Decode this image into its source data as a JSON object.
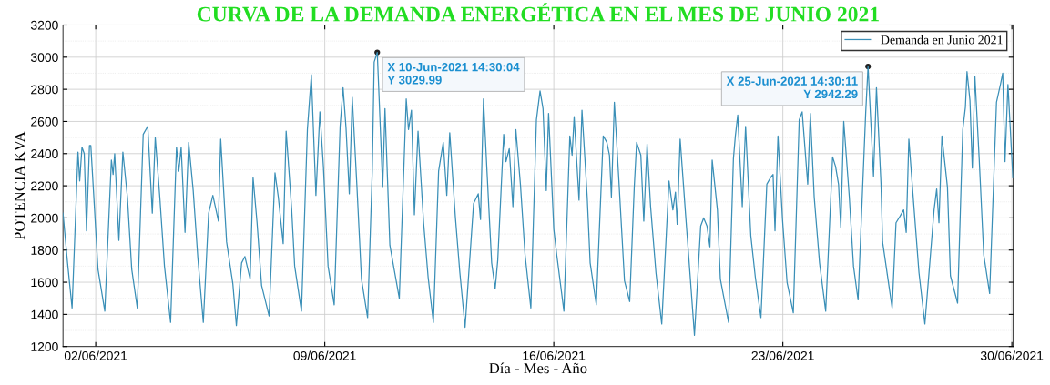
{
  "chart_data": {
    "type": "line",
    "title": "CURVA DE LA DEMANDA ENERGÉTICA EN EL MES DE JUNIO 2021",
    "xlabel": "Día - Mes - Año",
    "ylabel": "POTENCIA KVA",
    "xlim": [
      "2021-06-01",
      "2021-06-30T01:00"
    ],
    "xticks": [
      {
        "value": "2021-06-02",
        "label": "02/06/2021"
      },
      {
        "value": "2021-06-09",
        "label": "09/06/2021"
      },
      {
        "value": "2021-06-16",
        "label": "16/06/2021"
      },
      {
        "value": "2021-06-23",
        "label": "23/06/2021"
      },
      {
        "value": "2021-06-30",
        "label": "30/06/2021"
      }
    ],
    "ylim": [
      1200,
      3200
    ],
    "yticks": [
      1200,
      1400,
      1600,
      1800,
      2000,
      2200,
      2400,
      2600,
      2800,
      3000,
      3200
    ],
    "grid": true,
    "legend": "top right",
    "marker": "none",
    "line_style": "solid",
    "annotations": [
      {
        "text": "X 10-Jun-2021 14:30:04\nY 3029.99",
        "x": "2021-06-10T14:30",
        "y": 3029.99
      },
      {
        "text": "X 25-Jun-2021 14:30:11\nY 2942.29",
        "x": "2021-06-25T14:30",
        "y": 2942.29
      }
    ],
    "series": [
      {
        "name": "Demanda en Junio 2021",
        "color": "#3a8fb7",
        "x": [
          "2021-06-01T00:00",
          "2021-06-01T03:20",
          "2021-06-01T06:40",
          "2021-06-01T11:00",
          "2021-06-01T12:15",
          "2021-06-01T13:55",
          "2021-06-01T15:35",
          "2021-06-01T17:15",
          "2021-06-01T19:25",
          "2021-06-01T20:25",
          "2021-06-01T22:20",
          "2021-06-02T01:40",
          "2021-06-02T06:40",
          "2021-06-02T11:30",
          "2021-06-02T12:45",
          "2021-06-02T13:55",
          "2021-06-02T17:00",
          "2021-06-02T19:55",
          "2021-06-02T23:15",
          "2021-06-03T02:25",
          "2021-06-03T06:30",
          "2021-06-03T10:50",
          "2021-06-03T14:10",
          "2021-06-03T17:30",
          "2021-06-03T19:40",
          "2021-06-03T23:00",
          "2021-06-04T02:25",
          "2021-06-04T06:55",
          "2021-06-04T11:15",
          "2021-06-04T12:55",
          "2021-06-04T14:40",
          "2021-06-04T17:30",
          "2021-06-04T20:10",
          "2021-06-04T23:30",
          "2021-06-05T02:55",
          "2021-06-05T06:55",
          "2021-06-05T10:50",
          "2021-06-05T13:55",
          "2021-06-05T18:00",
          "2021-06-05T19:40",
          "2021-06-06T00:00",
          "2021-06-06T04:35",
          "2021-06-06T07:10",
          "2021-06-06T11:00",
          "2021-06-06T13:25",
          "2021-06-06T17:15",
          "2021-06-06T19:25",
          "2021-06-06T22:20",
          "2021-06-07T01:40",
          "2021-06-07T07:10",
          "2021-06-07T11:30",
          "2021-06-07T13:55",
          "2021-06-07T17:30",
          "2021-06-07T19:40",
          "2021-06-07T23:45",
          "2021-06-08T01:55",
          "2021-06-08T06:55",
          "2021-06-08T11:15",
          "2021-06-08T14:10",
          "2021-06-08T17:30",
          "2021-06-08T20:25",
          "2021-06-08T23:00",
          "2021-06-09T02:25",
          "2021-06-09T06:55",
          "2021-06-09T11:15",
          "2021-06-09T13:25",
          "2021-06-09T15:35",
          "2021-06-09T18:00",
          "2021-06-09T20:10",
          "2021-06-09T23:30",
          "2021-06-10T02:55",
          "2021-06-10T07:25",
          "2021-06-10T10:50",
          "2021-06-10T12:15",
          "2021-06-10T14:30",
          "2021-06-10T18:30",
          "2021-06-10T20:10",
          "2021-06-10T23:45",
          "2021-06-11T06:40",
          "2021-06-11T10:35",
          "2021-06-11T11:45",
          "2021-06-11T13:25",
          "2021-06-11T15:35",
          "2021-06-11T17:45",
          "2021-06-11T20:25",
          "2021-06-12T00:30",
          "2021-06-12T03:50",
          "2021-06-12T07:40",
          "2021-06-12T11:30",
          "2021-06-12T14:55",
          "2021-06-12T17:30",
          "2021-06-12T19:40",
          "2021-06-12T23:45",
          "2021-06-13T03:05",
          "2021-06-13T06:55",
          "2021-06-13T13:10",
          "2021-06-13T16:35",
          "2021-06-13T18:15",
          "2021-06-13T20:25",
          "2021-06-13T23:00",
          "2021-06-14T02:25",
          "2021-06-14T05:00",
          "2021-06-14T06:55",
          "2021-06-14T11:15",
          "2021-06-14T12:55",
          "2021-06-14T15:20",
          "2021-06-14T18:00",
          "2021-06-14T20:10",
          "2021-06-14T23:30",
          "2021-06-15T02:55",
          "2021-06-15T07:10",
          "2021-06-15T11:15",
          "2021-06-15T13:55",
          "2021-06-15T16:05",
          "2021-06-15T18:30",
          "2021-06-15T20:10",
          "2021-06-16T00:00",
          "2021-06-16T02:10",
          "2021-06-16T07:25",
          "2021-06-16T11:45",
          "2021-06-16T13:25",
          "2021-06-16T14:55",
          "2021-06-16T18:30",
          "2021-06-16T20:40",
          "2021-06-17T00:30",
          "2021-06-17T02:40",
          "2021-06-17T07:10",
          "2021-06-17T12:15",
          "2021-06-17T14:55",
          "2021-06-17T16:50",
          "2021-06-17T18:15",
          "2021-06-17T20:25",
          "2021-06-17T23:45",
          "2021-06-18T03:50",
          "2021-06-18T07:40",
          "2021-06-18T11:00",
          "2021-06-18T12:45",
          "2021-06-18T15:50",
          "2021-06-18T18:00",
          "2021-06-18T20:25",
          "2021-06-18T23:00",
          "2021-06-19T02:55",
          "2021-06-19T07:10",
          "2021-06-19T12:30",
          "2021-06-19T15:20",
          "2021-06-19T17:15",
          "2021-06-19T18:30",
          "2021-06-19T20:40",
          "2021-06-20T00:45",
          "2021-06-20T03:50",
          "2021-06-20T07:10",
          "2021-06-20T11:45",
          "2021-06-20T13:55",
          "2021-06-20T16:20",
          "2021-06-20T18:30",
          "2021-06-20T20:10",
          "2021-06-21T00:00",
          "2021-06-21T02:10",
          "2021-06-21T08:10",
          "2021-06-21T11:45",
          "2021-06-21T13:10",
          "2021-06-21T14:55",
          "2021-06-21T18:15",
          "2021-06-21T20:40",
          "2021-06-22T00:30",
          "2021-06-22T03:50",
          "2021-06-22T07:55",
          "2021-06-22T12:15",
          "2021-06-22T14:55",
          "2021-06-22T16:50",
          "2021-06-22T18:15",
          "2021-06-22T20:25",
          "2021-06-22T23:45",
          "2021-06-23T03:05",
          "2021-06-23T07:40",
          "2021-06-23T12:00",
          "2021-06-23T14:10",
          "2021-06-23T18:15",
          "2021-06-23T20:10",
          "2021-06-23T23:00",
          "2021-06-24T02:55",
          "2021-06-24T07:25",
          "2021-06-24T12:30",
          "2021-06-24T14:40",
          "2021-06-24T16:50",
          "2021-06-24T18:30",
          "2021-06-24T20:40",
          "2021-06-25T00:45",
          "2021-06-25T03:50",
          "2021-06-25T07:10",
          "2021-06-25T12:45",
          "2021-06-25T14:30",
          "2021-06-25T18:30",
          "2021-06-25T20:40",
          "2021-06-26T00:00",
          "2021-06-26T01:10",
          "2021-06-26T08:10",
          "2021-06-26T11:00",
          "2021-06-26T13:55",
          "2021-06-26T16:35",
          "2021-06-26T18:30",
          "2021-06-26T20:25",
          "2021-06-27T00:30",
          "2021-06-27T03:50",
          "2021-06-27T08:10",
          "2021-06-27T14:55",
          "2021-06-27T16:50",
          "2021-06-27T18:30",
          "2021-06-27T20:40",
          "2021-06-28T00:45",
          "2021-06-28T02:55",
          "2021-06-28T08:10",
          "2021-06-28T12:00",
          "2021-06-28T13:55",
          "2021-06-28T15:05",
          "2021-06-28T17:15",
          "2021-06-28T18:58",
          "2021-06-28T20:53",
          "2021-06-29T00:00",
          "2021-06-29T03:22",
          "2021-06-29T07:41",
          "2021-06-29T12:43",
          "2021-06-29T15:36",
          "2021-06-29T17:17",
          "2021-06-29T18:58",
          "2021-06-29T21:07",
          "2021-06-30T00:43"
        ],
        "values": [
          2030,
          1720,
          1440,
          2410,
          2230,
          2440,
          2400,
          1920,
          2450,
          2450,
          2170,
          1680,
          1420,
          2360,
          2270,
          2400,
          1860,
          2410,
          2130,
          1680,
          1440,
          2520,
          2570,
          2030,
          2500,
          2130,
          1700,
          1350,
          2440,
          2290,
          2440,
          1910,
          2470,
          2170,
          1750,
          1350,
          2030,
          2140,
          1980,
          2490,
          1850,
          1590,
          1330,
          1720,
          1760,
          1620,
          2250,
          1970,
          1580,
          1390,
          2280,
          2130,
          1840,
          2540,
          2050,
          1700,
          1420,
          2550,
          2890,
          2140,
          2660,
          2320,
          1700,
          1460,
          2570,
          2810,
          2560,
          2150,
          2750,
          2210,
          1620,
          1380,
          2290,
          2970,
          3029.99,
          2190,
          2680,
          1830,
          1500,
          2450,
          2740,
          2550,
          2670,
          2020,
          2540,
          1970,
          1630,
          1350,
          2290,
          2470,
          2140,
          2530,
          2010,
          1660,
          1320,
          2090,
          2150,
          1990,
          2740,
          2290,
          1720,
          1560,
          1740,
          2520,
          2350,
          2430,
          2070,
          2550,
          2210,
          1770,
          1440,
          2610,
          2790,
          2680,
          2170,
          2650,
          1930,
          1770,
          1420,
          2510,
          2390,
          2630,
          2110,
          2670,
          2130,
          1720,
          1460,
          2510,
          2470,
          2390,
          2130,
          2720,
          2230,
          1610,
          1480,
          2190,
          2470,
          2390,
          1980,
          2460,
          2070,
          1660,
          1340,
          2230,
          2050,
          2160,
          1960,
          2490,
          2010,
          1660,
          1270,
          1950,
          2000,
          1950,
          1820,
          2360,
          2050,
          1620,
          1350,
          2370,
          2510,
          2640,
          2070,
          2570,
          1890,
          1630,
          1380,
          2210,
          2250,
          2270,
          1920,
          2510,
          1990,
          1600,
          1410,
          2610,
          2660,
          2210,
          2650,
          2130,
          1720,
          1420,
          2380,
          2320,
          2210,
          1940,
          2600,
          2130,
          1700,
          1490,
          2650,
          2942.29,
          2260,
          2810,
          2210,
          1850,
          1440,
          1970,
          2010,
          2050,
          1910,
          2490,
          2030,
          1660,
          1340,
          2050,
          2180,
          1970,
          2510,
          2190,
          1640,
          1470,
          2550,
          2690,
          2910,
          2730,
          2310,
          2880,
          2370,
          1770,
          1530,
          2720,
          2830,
          2900,
          2350,
          2830,
          2250
        ]
      }
    ]
  }
}
